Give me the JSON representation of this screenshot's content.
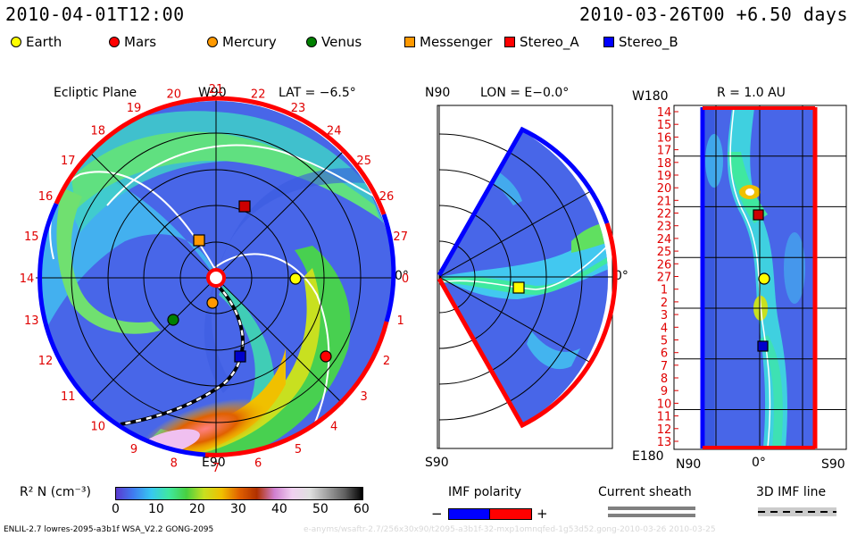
{
  "header": {
    "datetime": "2010-04-01T12:00",
    "run": "2010-03-26T00 +6.50 days"
  },
  "legend": [
    {
      "name": "Earth",
      "shape": "circle",
      "color": "#ffff00"
    },
    {
      "name": "Mars",
      "shape": "circle",
      "color": "#ff0000"
    },
    {
      "name": "Mercury",
      "shape": "circle",
      "color": "#ff9900"
    },
    {
      "name": "Venus",
      "shape": "circle",
      "color": "#008000"
    },
    {
      "name": "Messenger",
      "shape": "square",
      "color": "#ff9900"
    },
    {
      "name": "Stereo_A",
      "shape": "square",
      "color": "#ff0000"
    },
    {
      "name": "Stereo_B",
      "shape": "square",
      "color": "#0000ff"
    }
  ],
  "ecliptic": {
    "title": "Ecliptic Plane",
    "top": "W90",
    "lat": "LAT = −6.5°",
    "right": "0°",
    "bottom": "E90",
    "ticks": [
      "19",
      "20",
      "21",
      "22",
      "23",
      "24",
      "25",
      "26",
      "27",
      "0",
      "1",
      "2",
      "3",
      "4",
      "5",
      "6",
      "7",
      "8",
      "9",
      "10",
      "11",
      "12",
      "13",
      "14",
      "15",
      "16",
      "17",
      "18"
    ]
  },
  "meridional": {
    "top": "N90",
    "lon": "LON = E−0.0°",
    "right": "0°",
    "bottom": "S90"
  },
  "radial": {
    "top_left": "W180",
    "r": "R = 1.0 AU",
    "bottom_left": "E180",
    "x_left": "N90",
    "x_mid": "0°",
    "x_right": "S90",
    "rows": [
      "14",
      "15",
      "16",
      "17",
      "18",
      "19",
      "20",
      "21",
      "22",
      "23",
      "24",
      "25",
      "26",
      "27",
      "1",
      "2",
      "3",
      "4",
      "5",
      "6",
      "7",
      "8",
      "9",
      "10",
      "11",
      "12",
      "13"
    ]
  },
  "colorbar": {
    "label": "R² N (cm⁻³)",
    "ticks": [
      "0",
      "10",
      "20",
      "30",
      "40",
      "50",
      "60"
    ],
    "stops": [
      "#5a3ad0",
      "#3f7df0",
      "#37c8f0",
      "#3fe8a0",
      "#48d040",
      "#c8e020",
      "#f0c000",
      "#e06000",
      "#b03000",
      "#d080d0",
      "#f0d0f0",
      "#e0e0e0",
      "#a0a0a0",
      "#606060",
      "#000000"
    ]
  },
  "imf_polarity": {
    "label": "IMF polarity",
    "minus": "−",
    "plus": "+",
    "neg_color": "#0000ff",
    "pos_color": "#ff0000"
  },
  "current_sheath": {
    "label": "Current sheath"
  },
  "imf_line": {
    "label": "3D IMF line"
  },
  "footer": {
    "left": "ENLIL-2.7 lowres-2095-a3b1f WSA_V2.2 GONG-2095",
    "right": "e-anyms/wsaftr-2.7/256x30x90/t2095-a3b1f-32-mxp1omnqfed-1g53d52.gong-2010-03-26  2010-03-25"
  }
}
